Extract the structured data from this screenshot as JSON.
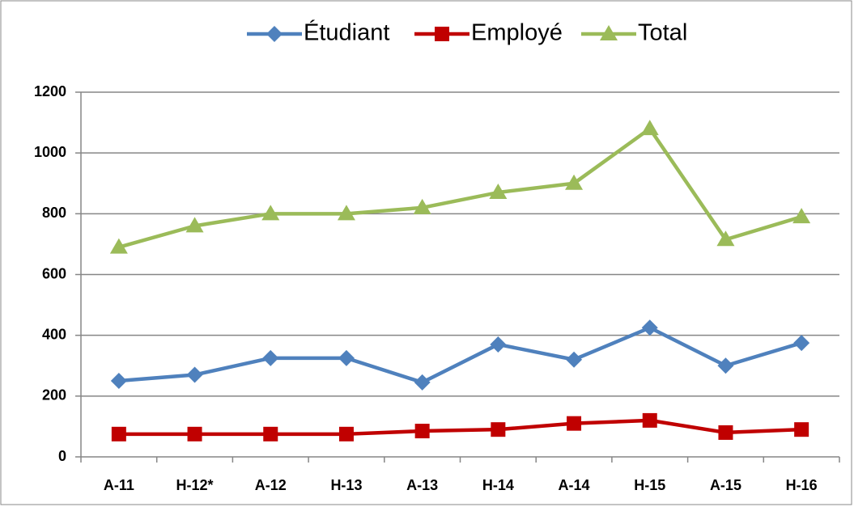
{
  "chart_data": {
    "type": "line",
    "categories": [
      "A-11",
      "H-12*",
      "A-12",
      "H-13",
      "A-13",
      "H-14",
      "A-14",
      "H-15",
      "A-15",
      "H-16"
    ],
    "series": [
      {
        "name": "Étudiant",
        "color": "#4f81bd",
        "marker": "diamond",
        "values": [
          250,
          270,
          325,
          325,
          245,
          370,
          320,
          425,
          300,
          375
        ]
      },
      {
        "name": "Employé",
        "color": "#c00000",
        "marker": "square",
        "values": [
          75,
          75,
          75,
          75,
          85,
          90,
          110,
          120,
          80,
          90
        ]
      },
      {
        "name": "Total",
        "color": "#9bbb59",
        "marker": "triangle",
        "values": [
          690,
          760,
          800,
          800,
          820,
          870,
          900,
          1080,
          715,
          790
        ]
      }
    ],
    "ylim": [
      0,
      1200
    ],
    "yticks": [
      0,
      200,
      400,
      600,
      800,
      1000,
      1200
    ],
    "grid": true,
    "legend": "top"
  }
}
